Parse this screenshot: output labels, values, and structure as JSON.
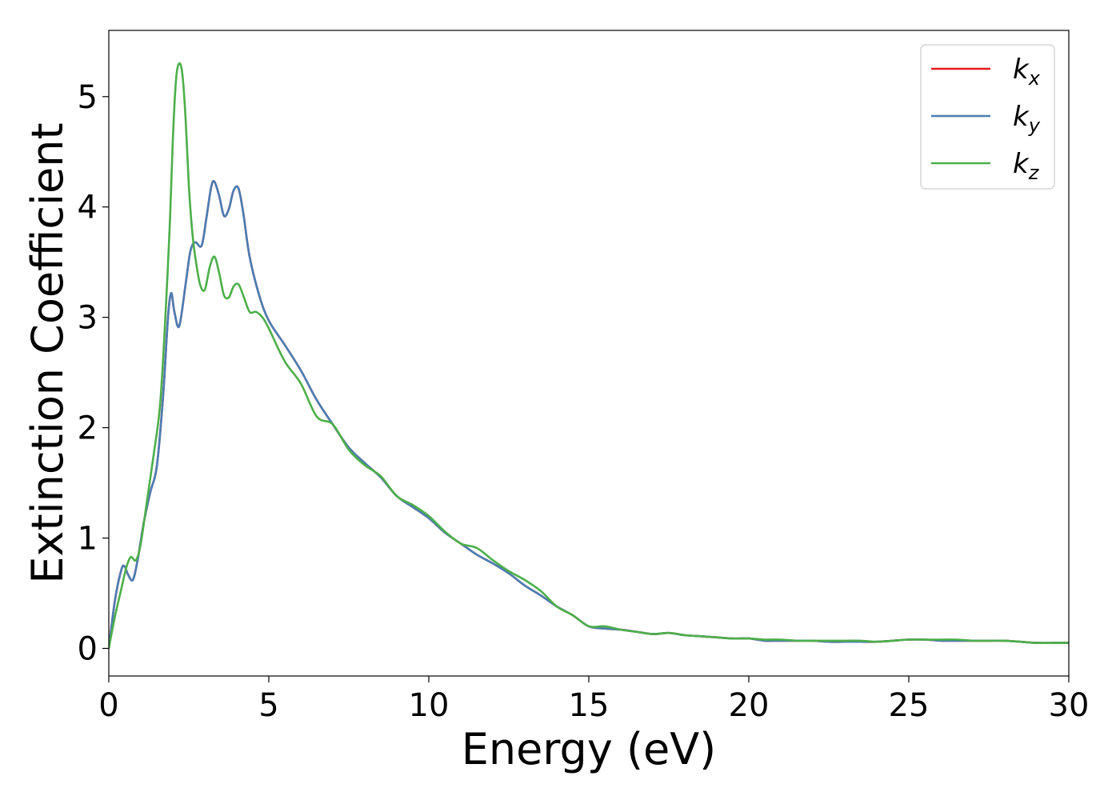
{
  "chart_data": {
    "type": "line",
    "xlabel": "Energy (eV)",
    "ylabel": "Extinction Coefficient",
    "xlim": [
      0,
      30
    ],
    "ylim": [
      -0.25,
      5.6
    ],
    "xticks": [
      0,
      5,
      10,
      15,
      20,
      25,
      30
    ],
    "yticks": [
      0,
      1,
      2,
      3,
      4,
      5
    ],
    "grid": false,
    "legend_position": "top-right",
    "series": [
      {
        "name": "k_x",
        "label_base": "k",
        "label_sub": "x",
        "color": "#e41a1c",
        "x": [
          0,
          0.2,
          0.4,
          0.5,
          0.6,
          0.75,
          0.9,
          1.1,
          1.3,
          1.5,
          1.7,
          1.85,
          1.95,
          2.05,
          2.2,
          2.4,
          2.55,
          2.7,
          2.9,
          3.05,
          3.2,
          3.3,
          3.45,
          3.6,
          3.75,
          3.9,
          4.05,
          4.2,
          4.4,
          4.7,
          5.0,
          5.5,
          6.0,
          6.5,
          7.0,
          7.5,
          8.0,
          8.5,
          9.0,
          9.5,
          10.0,
          10.5,
          11.0,
          11.5,
          12.0,
          12.5,
          13.0,
          13.5,
          14.0,
          14.5,
          15.0,
          15.5,
          16.0,
          16.5,
          17.0,
          17.5,
          18.0,
          18.5,
          19.0,
          19.5,
          20.0,
          20.5,
          21.0,
          21.5,
          22.0,
          22.5,
          23.0,
          23.5,
          24.0,
          24.5,
          25.0,
          25.5,
          26.0,
          26.5,
          27.0,
          27.5,
          28.0,
          28.5,
          29.0,
          29.5,
          30.0
        ],
        "y": [
          0,
          0.45,
          0.72,
          0.74,
          0.67,
          0.62,
          0.8,
          1.15,
          1.42,
          1.65,
          2.3,
          3.0,
          3.22,
          3.05,
          2.92,
          3.3,
          3.6,
          3.68,
          3.65,
          3.9,
          4.18,
          4.23,
          4.1,
          3.92,
          3.98,
          4.15,
          4.17,
          3.95,
          3.55,
          3.2,
          2.97,
          2.75,
          2.52,
          2.25,
          2.03,
          1.82,
          1.68,
          1.55,
          1.38,
          1.28,
          1.18,
          1.05,
          0.95,
          0.85,
          0.77,
          0.68,
          0.57,
          0.48,
          0.38,
          0.3,
          0.2,
          0.18,
          0.17,
          0.15,
          0.13,
          0.14,
          0.12,
          0.11,
          0.1,
          0.09,
          0.09,
          0.07,
          0.07,
          0.07,
          0.07,
          0.06,
          0.06,
          0.06,
          0.06,
          0.07,
          0.08,
          0.08,
          0.07,
          0.07,
          0.07,
          0.07,
          0.07,
          0.06,
          0.05,
          0.05,
          0.05
        ]
      },
      {
        "name": "k_y",
        "label_base": "k",
        "label_sub": "y",
        "color": "#4a7eb4",
        "x": [
          0,
          0.2,
          0.4,
          0.5,
          0.6,
          0.75,
          0.9,
          1.1,
          1.3,
          1.5,
          1.7,
          1.85,
          1.95,
          2.05,
          2.2,
          2.4,
          2.55,
          2.7,
          2.9,
          3.05,
          3.2,
          3.3,
          3.45,
          3.6,
          3.75,
          3.9,
          4.05,
          4.2,
          4.4,
          4.7,
          5.0,
          5.5,
          6.0,
          6.5,
          7.0,
          7.5,
          8.0,
          8.5,
          9.0,
          9.5,
          10.0,
          10.5,
          11.0,
          11.5,
          12.0,
          12.5,
          13.0,
          13.5,
          14.0,
          14.5,
          15.0,
          15.5,
          16.0,
          16.5,
          17.0,
          17.5,
          18.0,
          18.5,
          19.0,
          19.5,
          20.0,
          20.5,
          21.0,
          21.5,
          22.0,
          22.5,
          23.0,
          23.5,
          24.0,
          24.5,
          25.0,
          25.5,
          26.0,
          26.5,
          27.0,
          27.5,
          28.0,
          28.5,
          29.0,
          29.5,
          30.0
        ],
        "y": [
          0,
          0.45,
          0.72,
          0.74,
          0.67,
          0.62,
          0.8,
          1.15,
          1.42,
          1.65,
          2.3,
          3.0,
          3.22,
          3.05,
          2.92,
          3.3,
          3.6,
          3.68,
          3.65,
          3.9,
          4.18,
          4.23,
          4.1,
          3.92,
          3.98,
          4.15,
          4.17,
          3.95,
          3.55,
          3.2,
          2.97,
          2.75,
          2.52,
          2.25,
          2.03,
          1.82,
          1.68,
          1.55,
          1.38,
          1.28,
          1.18,
          1.05,
          0.95,
          0.85,
          0.77,
          0.68,
          0.57,
          0.48,
          0.38,
          0.3,
          0.2,
          0.18,
          0.17,
          0.15,
          0.13,
          0.14,
          0.12,
          0.11,
          0.1,
          0.09,
          0.09,
          0.07,
          0.07,
          0.07,
          0.07,
          0.06,
          0.06,
          0.06,
          0.06,
          0.07,
          0.08,
          0.08,
          0.07,
          0.07,
          0.07,
          0.07,
          0.07,
          0.06,
          0.05,
          0.05,
          0.05
        ]
      },
      {
        "name": "k_z",
        "label_base": "k",
        "label_sub": "z",
        "color": "#4daf4a",
        "x": [
          0,
          0.2,
          0.4,
          0.5,
          0.6,
          0.7,
          0.85,
          1.0,
          1.2,
          1.4,
          1.6,
          1.75,
          1.9,
          2.0,
          2.1,
          2.2,
          2.3,
          2.4,
          2.5,
          2.6,
          2.7,
          2.85,
          3.0,
          3.15,
          3.3,
          3.45,
          3.6,
          3.75,
          3.9,
          4.05,
          4.2,
          4.4,
          4.6,
          4.8,
          5.0,
          5.5,
          6.0,
          6.5,
          7.0,
          7.5,
          8.0,
          8.5,
          9.0,
          9.5,
          10.0,
          10.5,
          11.0,
          11.5,
          12.0,
          12.5,
          13.0,
          13.5,
          14.0,
          14.5,
          15.0,
          15.5,
          16.0,
          16.5,
          17.0,
          17.5,
          18.0,
          18.5,
          19.0,
          19.5,
          20.0,
          20.5,
          21.0,
          21.5,
          22.0,
          22.5,
          23.0,
          23.5,
          24.0,
          24.5,
          25.0,
          25.5,
          26.0,
          26.5,
          27.0,
          27.5,
          28.0,
          28.5,
          29.0,
          29.5,
          30.0
        ],
        "y": [
          0,
          0.3,
          0.55,
          0.68,
          0.78,
          0.83,
          0.8,
          0.95,
          1.35,
          1.75,
          2.2,
          2.9,
          3.8,
          4.6,
          5.15,
          5.3,
          5.2,
          4.8,
          4.2,
          3.8,
          3.55,
          3.3,
          3.25,
          3.45,
          3.55,
          3.4,
          3.2,
          3.18,
          3.28,
          3.3,
          3.2,
          3.05,
          3.05,
          3.0,
          2.9,
          2.6,
          2.4,
          2.1,
          2.03,
          1.8,
          1.66,
          1.56,
          1.38,
          1.3,
          1.2,
          1.06,
          0.95,
          0.91,
          0.8,
          0.7,
          0.62,
          0.52,
          0.38,
          0.3,
          0.2,
          0.2,
          0.17,
          0.15,
          0.13,
          0.14,
          0.12,
          0.11,
          0.1,
          0.09,
          0.09,
          0.08,
          0.08,
          0.07,
          0.07,
          0.07,
          0.07,
          0.07,
          0.06,
          0.07,
          0.08,
          0.08,
          0.08,
          0.08,
          0.07,
          0.07,
          0.07,
          0.06,
          0.05,
          0.05,
          0.05
        ]
      }
    ]
  }
}
